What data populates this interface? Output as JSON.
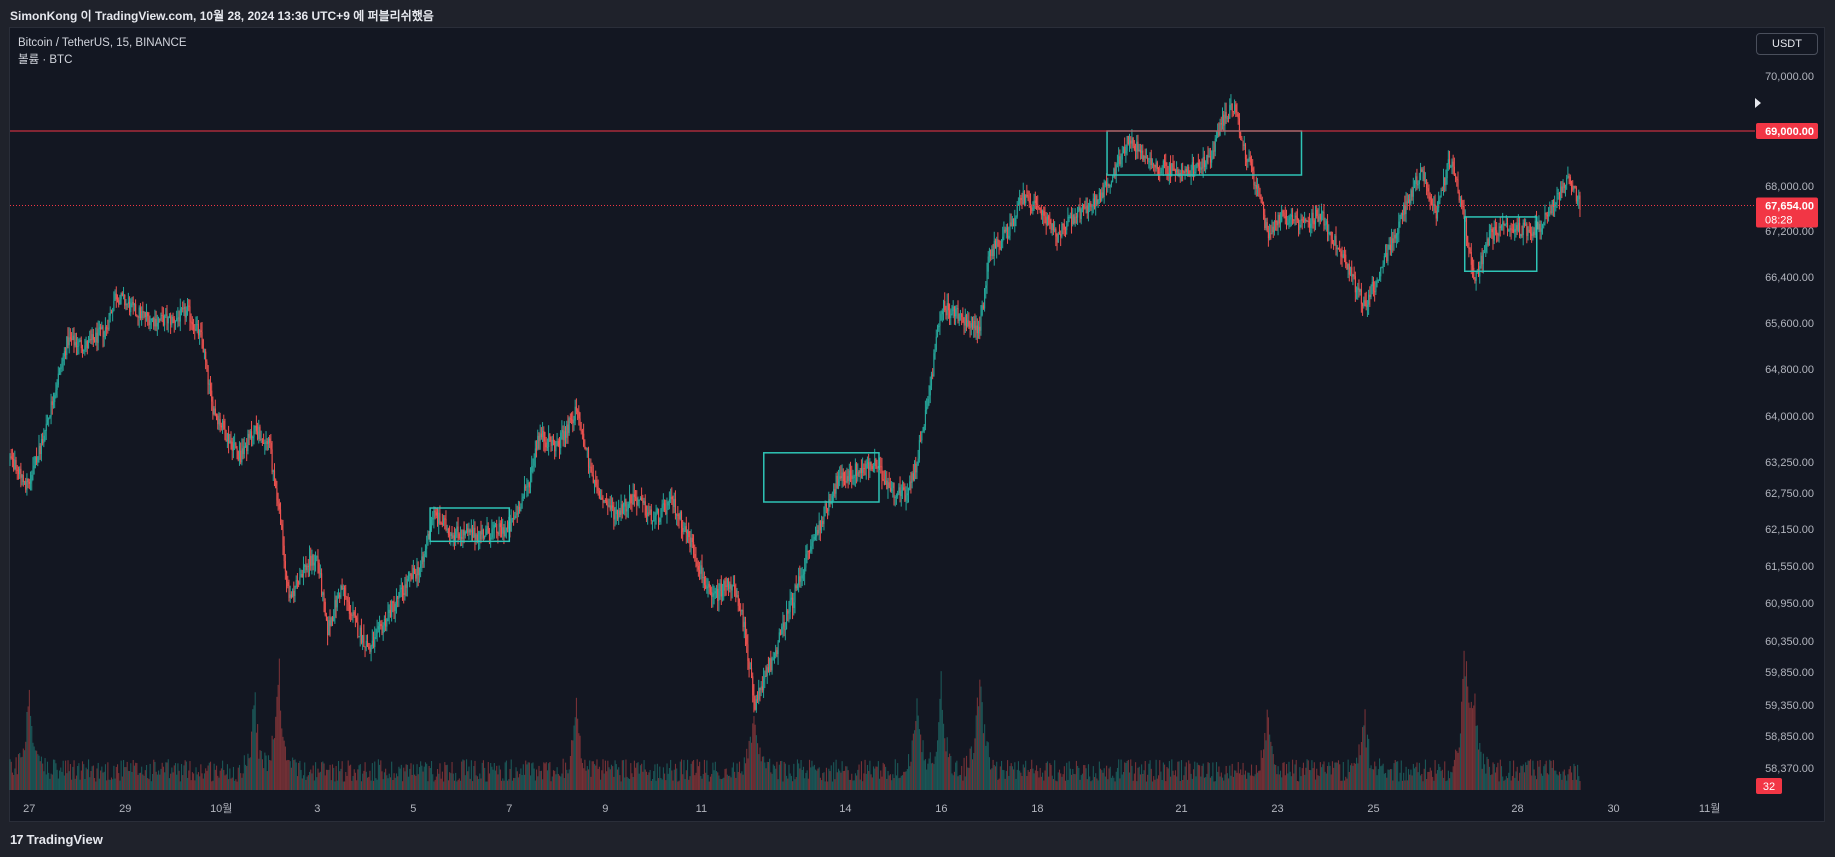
{
  "header": {
    "publish_line": "SimonKong 이 TradingView.com, 10월 28, 2024 13:36 UTC+9 에 퍼블리쉬했음"
  },
  "legend": {
    "symbol_line": "Bitcoin / TetherUS, 15, BINANCE",
    "volume_line": "볼륨 · BTC"
  },
  "currency_button": "USDT",
  "footer": {
    "brand": "TradingView",
    "logo": "17"
  },
  "colors": {
    "up": "#26a69a",
    "down": "#ef5350",
    "background": "#131722",
    "box": "#2ec4b6",
    "resistance": "#f23645"
  },
  "chart_data": {
    "type": "candlestick",
    "symbol": "Bitcoin / TetherUS",
    "interval": "15",
    "exchange": "BINANCE",
    "y_scale": "nonlinear",
    "ylim": [
      58000,
      70600
    ],
    "y_ticks": [
      {
        "label": "70,000.00",
        "value": 70000
      },
      {
        "label": "68,000.00",
        "value": 68000
      },
      {
        "label": "67,200.00",
        "value": 67200
      },
      {
        "label": "66,400.00",
        "value": 66400
      },
      {
        "label": "65,600.00",
        "value": 65600
      },
      {
        "label": "64,800.00",
        "value": 64800
      },
      {
        "label": "64,000.00",
        "value": 64000
      },
      {
        "label": "63,250.00",
        "value": 63250
      },
      {
        "label": "62,750.00",
        "value": 62750
      },
      {
        "label": "62,150.00",
        "value": 62150
      },
      {
        "label": "61,550.00",
        "value": 61550
      },
      {
        "label": "60,950.00",
        "value": 60950
      },
      {
        "label": "60,350.00",
        "value": 60350
      },
      {
        "label": "59,850.00",
        "value": 59850
      },
      {
        "label": "59,350.00",
        "value": 59350
      },
      {
        "label": "58,850.00",
        "value": 58850
      },
      {
        "label": "58,370.00",
        "value": 58370
      }
    ],
    "x_ticks": [
      "27",
      "29",
      "10월",
      "3",
      "5",
      "7",
      "9",
      "11",
      "14",
      "16",
      "18",
      "21",
      "23",
      "25",
      "28",
      "30",
      "11월"
    ],
    "x_tick_days": [
      0,
      2,
      4,
      6,
      8,
      10,
      12,
      14,
      17,
      19,
      21,
      24,
      26,
      28,
      31,
      33,
      35
    ],
    "x_range_days": [
      -0.4,
      35.8
    ],
    "resistance_line": {
      "value": 69000,
      "label": "69,000.00"
    },
    "last_price": {
      "value": 67654,
      "label": "67,654.00",
      "countdown": "08:28"
    },
    "volume_badge": "32",
    "price_path": [
      {
        "d": -0.4,
        "p": 63300
      },
      {
        "d": 0.0,
        "p": 62850
      },
      {
        "d": 0.4,
        "p": 64000
      },
      {
        "d": 0.8,
        "p": 65300
      },
      {
        "d": 1.2,
        "p": 65200
      },
      {
        "d": 1.6,
        "p": 65500
      },
      {
        "d": 1.8,
        "p": 66100
      },
      {
        "d": 2.2,
        "p": 65800
      },
      {
        "d": 2.6,
        "p": 65650
      },
      {
        "d": 3.0,
        "p": 65650
      },
      {
        "d": 3.3,
        "p": 65800
      },
      {
        "d": 3.6,
        "p": 65300
      },
      {
        "d": 3.8,
        "p": 64200
      },
      {
        "d": 4.1,
        "p": 63700
      },
      {
        "d": 4.4,
        "p": 63350
      },
      {
        "d": 4.7,
        "p": 63800
      },
      {
        "d": 5.0,
        "p": 63500
      },
      {
        "d": 5.2,
        "p": 62500
      },
      {
        "d": 5.4,
        "p": 61000
      },
      {
        "d": 5.7,
        "p": 61500
      },
      {
        "d": 6.0,
        "p": 61700
      },
      {
        "d": 6.2,
        "p": 60500
      },
      {
        "d": 6.5,
        "p": 61200
      },
      {
        "d": 6.8,
        "p": 60600
      },
      {
        "d": 7.1,
        "p": 60200
      },
      {
        "d": 7.5,
        "p": 60800
      },
      {
        "d": 7.9,
        "p": 61300
      },
      {
        "d": 8.2,
        "p": 61600
      },
      {
        "d": 8.4,
        "p": 62400
      },
      {
        "d": 8.8,
        "p": 62100
      },
      {
        "d": 9.2,
        "p": 62050
      },
      {
        "d": 9.6,
        "p": 62100
      },
      {
        "d": 10.0,
        "p": 62150
      },
      {
        "d": 10.4,
        "p": 62900
      },
      {
        "d": 10.6,
        "p": 63700
      },
      {
        "d": 11.0,
        "p": 63500
      },
      {
        "d": 11.4,
        "p": 64100
      },
      {
        "d": 11.8,
        "p": 62800
      },
      {
        "d": 12.2,
        "p": 62400
      },
      {
        "d": 12.6,
        "p": 62700
      },
      {
        "d": 13.0,
        "p": 62300
      },
      {
        "d": 13.4,
        "p": 62600
      },
      {
        "d": 13.8,
        "p": 61900
      },
      {
        "d": 14.2,
        "p": 61000
      },
      {
        "d": 14.6,
        "p": 61300
      },
      {
        "d": 14.9,
        "p": 60600
      },
      {
        "d": 15.1,
        "p": 59300
      },
      {
        "d": 15.5,
        "p": 60100
      },
      {
        "d": 15.9,
        "p": 61000
      },
      {
        "d": 16.2,
        "p": 61700
      },
      {
        "d": 16.5,
        "p": 62300
      },
      {
        "d": 16.8,
        "p": 62900
      },
      {
        "d": 17.2,
        "p": 63100
      },
      {
        "d": 17.6,
        "p": 63200
      },
      {
        "d": 18.0,
        "p": 62800
      },
      {
        "d": 18.3,
        "p": 62700
      },
      {
        "d": 18.5,
        "p": 63300
      },
      {
        "d": 18.8,
        "p": 64700
      },
      {
        "d": 19.0,
        "p": 65900
      },
      {
        "d": 19.4,
        "p": 65700
      },
      {
        "d": 19.8,
        "p": 65500
      },
      {
        "d": 20.0,
        "p": 66800
      },
      {
        "d": 20.4,
        "p": 67200
      },
      {
        "d": 20.7,
        "p": 67800
      },
      {
        "d": 21.0,
        "p": 67600
      },
      {
        "d": 21.4,
        "p": 67100
      },
      {
        "d": 21.8,
        "p": 67500
      },
      {
        "d": 22.2,
        "p": 67700
      },
      {
        "d": 22.6,
        "p": 68200
      },
      {
        "d": 22.9,
        "p": 68900
      },
      {
        "d": 23.3,
        "p": 68400
      },
      {
        "d": 23.8,
        "p": 68300
      },
      {
        "d": 24.2,
        "p": 68300
      },
      {
        "d": 24.6,
        "p": 68500
      },
      {
        "d": 24.8,
        "p": 69100
      },
      {
        "d": 25.1,
        "p": 69500
      },
      {
        "d": 25.3,
        "p": 68700
      },
      {
        "d": 25.6,
        "p": 67900
      },
      {
        "d": 25.8,
        "p": 67100
      },
      {
        "d": 26.1,
        "p": 67500
      },
      {
        "d": 26.5,
        "p": 67300
      },
      {
        "d": 26.9,
        "p": 67500
      },
      {
        "d": 27.2,
        "p": 67000
      },
      {
        "d": 27.5,
        "p": 66500
      },
      {
        "d": 27.8,
        "p": 65900
      },
      {
        "d": 28.1,
        "p": 66400
      },
      {
        "d": 28.4,
        "p": 67000
      },
      {
        "d": 28.7,
        "p": 67700
      },
      {
        "d": 29.0,
        "p": 68300
      },
      {
        "d": 29.3,
        "p": 67500
      },
      {
        "d": 29.6,
        "p": 68500
      },
      {
        "d": 29.9,
        "p": 67400
      },
      {
        "d": 30.1,
        "p": 66300
      },
      {
        "d": 30.4,
        "p": 67100
      },
      {
        "d": 30.8,
        "p": 67300
      },
      {
        "d": 31.2,
        "p": 67200
      },
      {
        "d": 31.5,
        "p": 67300
      },
      {
        "d": 31.8,
        "p": 67800
      },
      {
        "d": 32.1,
        "p": 68100
      },
      {
        "d": 32.3,
        "p": 67654
      }
    ],
    "consolidation_boxes": [
      {
        "from_day": 8.35,
        "to_day": 10.0,
        "low": 61950,
        "high": 62500
      },
      {
        "from_day": 15.3,
        "to_day": 17.7,
        "low": 62600,
        "high": 63400
      },
      {
        "from_day": 22.45,
        "to_day": 26.5,
        "low": 68200,
        "high": 69000
      },
      {
        "from_day": 29.9,
        "to_day": 31.4,
        "low": 66500,
        "high": 67450
      }
    ],
    "volume_spikes": [
      {
        "d": 0.0,
        "v": 38
      },
      {
        "d": 4.7,
        "v": 33
      },
      {
        "d": 5.2,
        "v": 48
      },
      {
        "d": 11.4,
        "v": 30
      },
      {
        "d": 15.1,
        "v": 28
      },
      {
        "d": 18.5,
        "v": 35
      },
      {
        "d": 19.0,
        "v": 38
      },
      {
        "d": 19.8,
        "v": 55
      },
      {
        "d": 25.8,
        "v": 30
      },
      {
        "d": 27.8,
        "v": 28
      },
      {
        "d": 29.9,
        "v": 56
      },
      {
        "d": 30.1,
        "v": 32
      }
    ]
  }
}
